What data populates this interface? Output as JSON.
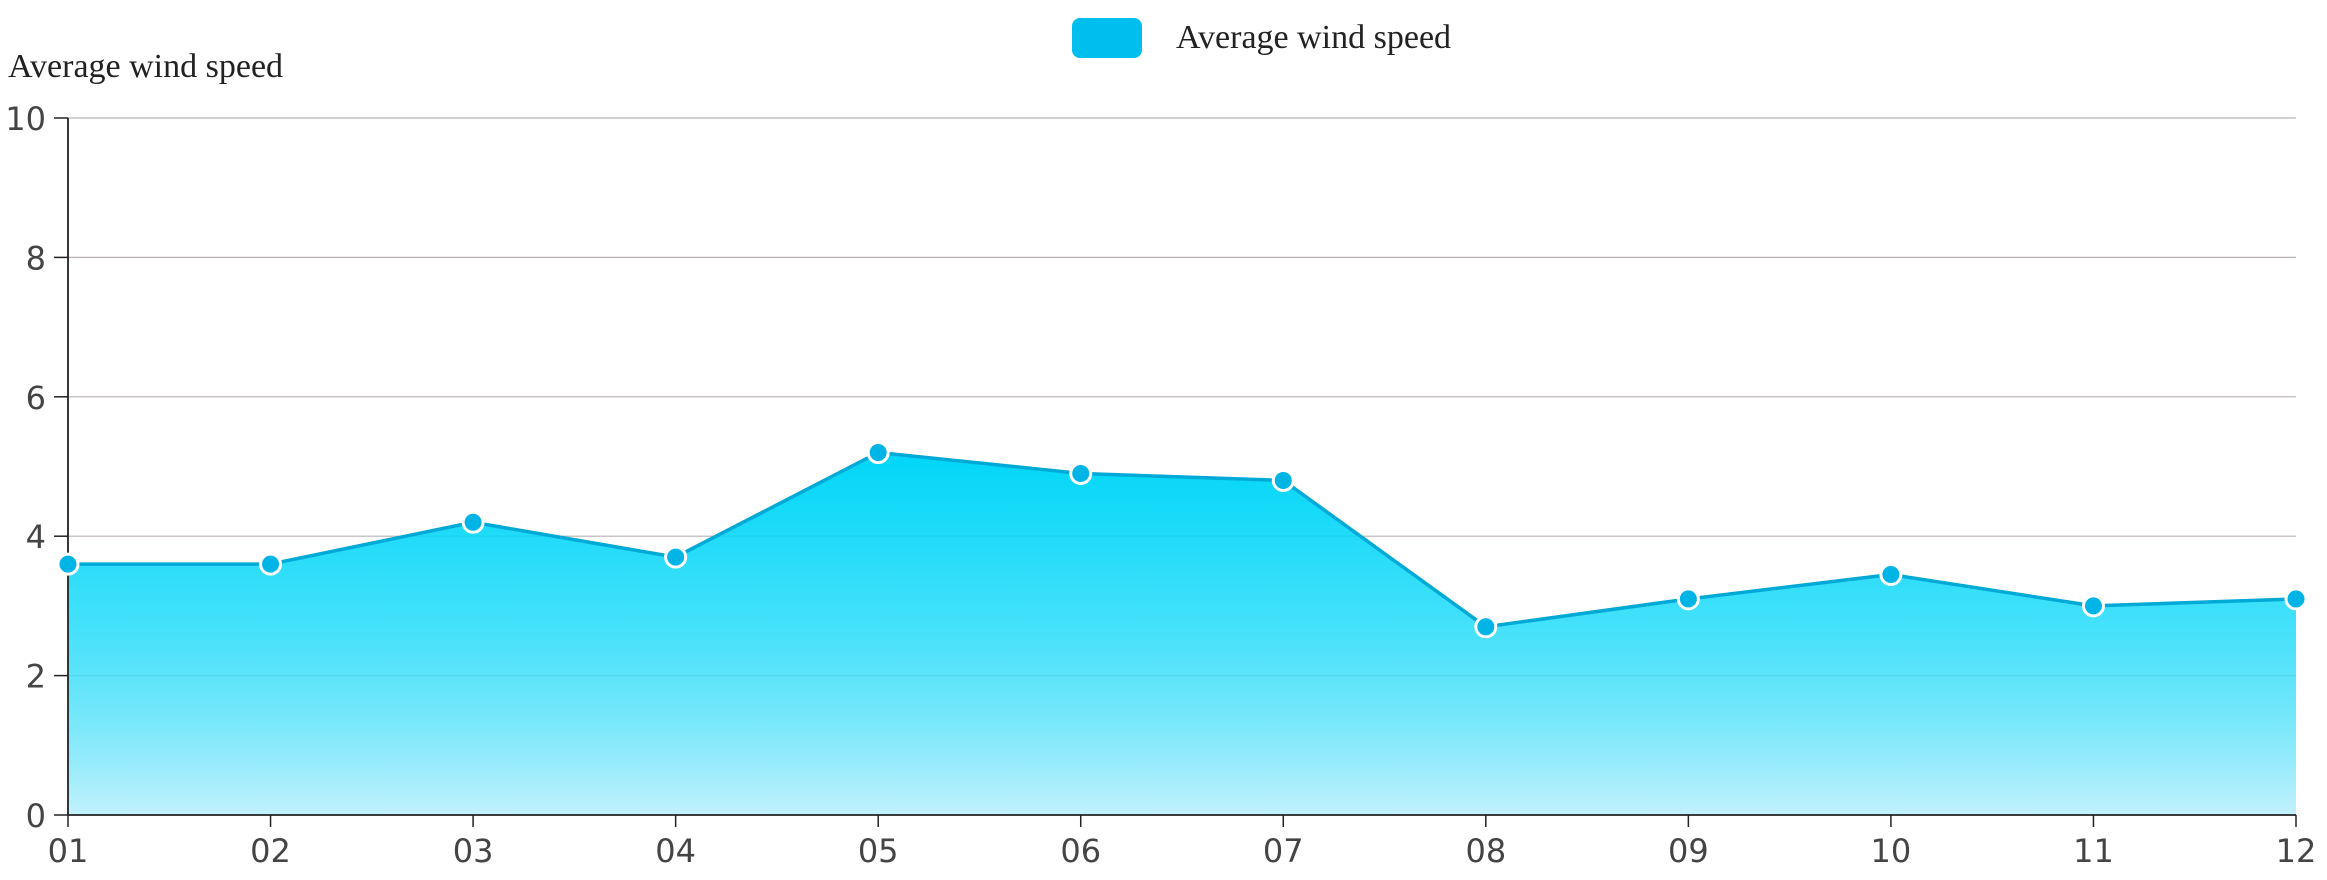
{
  "chart_data": {
    "type": "area",
    "title": "",
    "ylabel": "Average wind speed",
    "xlabel": "",
    "categories": [
      "01",
      "02",
      "03",
      "04",
      "05",
      "06",
      "07",
      "08",
      "09",
      "10",
      "11",
      "12"
    ],
    "series": [
      {
        "name": "Average wind speed",
        "values": [
          3.6,
          3.6,
          4.2,
          3.7,
          5.2,
          4.9,
          4.8,
          2.7,
          3.1,
          3.45,
          3.0,
          3.1
        ]
      }
    ],
    "ylim": [
      0,
      10
    ],
    "yticks": [
      0,
      2,
      4,
      6,
      8,
      10
    ],
    "grid": true,
    "legend_position": "top-center",
    "colors": {
      "line": "#00a9d6",
      "fill_top": "#00d6f8",
      "fill_bottom": "#c2f1fc",
      "marker": "#00b4e6",
      "legend": "#00bfef",
      "grid": "#b9b0b4",
      "axis": "#222222"
    }
  }
}
